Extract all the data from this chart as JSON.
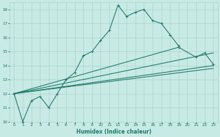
{
  "xlabel": "Humidex (Indice chaleur)",
  "xlim": [
    -0.5,
    23.5
  ],
  "ylim": [
    10,
    18.5
  ],
  "yticks": [
    10,
    11,
    12,
    13,
    14,
    15,
    16,
    17,
    18
  ],
  "xticks": [
    0,
    1,
    2,
    3,
    4,
    5,
    6,
    7,
    8,
    9,
    10,
    11,
    12,
    13,
    14,
    15,
    16,
    17,
    18,
    19,
    20,
    21,
    22,
    23
  ],
  "bg_color": "#c8eae4",
  "grid_color": "#a8d4cc",
  "line_color": "#1e7a6a",
  "line1_x": [
    0,
    1,
    2,
    3,
    4,
    5,
    6,
    7,
    8,
    9,
    10,
    11,
    12,
    13,
    14,
    15,
    16,
    17,
    18,
    19
  ],
  "line1_y": [
    12.0,
    10.0,
    11.5,
    11.8,
    11.0,
    12.0,
    13.0,
    13.5,
    14.7,
    15.0,
    15.8,
    16.5,
    18.3,
    17.5,
    17.8,
    18.0,
    17.2,
    17.0,
    16.2,
    15.4
  ],
  "line2_x": [
    0,
    23
  ],
  "line2_y": [
    12.0,
    14.0
  ],
  "line3_x": [
    0,
    23
  ],
  "line3_y": [
    12.0,
    13.8
  ],
  "line4_x": [
    0,
    19,
    21,
    22,
    23
  ],
  "line4_y": [
    12.0,
    15.3,
    14.6,
    14.9,
    14.1
  ],
  "line5_x": [
    0,
    23
  ],
  "line5_y": [
    12.0,
    14.9
  ]
}
